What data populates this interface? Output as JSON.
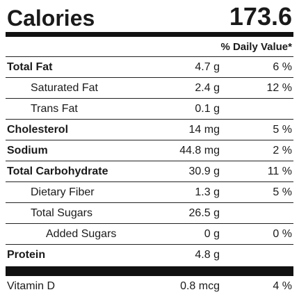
{
  "calories": {
    "label": "Calories",
    "value": "173.6"
  },
  "daily_value_header": "% Daily Value*",
  "nutrients": [
    {
      "name": "Total Fat",
      "amount": "4.7 g",
      "pct": "6 %"
    },
    {
      "name": "Saturated Fat",
      "amount": "2.4 g",
      "pct": "12 %"
    },
    {
      "name": "Trans Fat",
      "amount": "0.1 g",
      "pct": ""
    },
    {
      "name": "Cholesterol",
      "amount": "14 mg",
      "pct": "5 %"
    },
    {
      "name": "Sodium",
      "amount": "44.8 mg",
      "pct": "2 %"
    },
    {
      "name": "Total Carbohydrate",
      "amount": "30.9 g",
      "pct": "11 %"
    },
    {
      "name": "Dietary Fiber",
      "amount": "1.3 g",
      "pct": "5 %"
    },
    {
      "name": "Total Sugars",
      "amount": "26.5 g",
      "pct": ""
    },
    {
      "name": "Added Sugars",
      "amount": "0 g",
      "pct": "0 %"
    },
    {
      "name": "Protein",
      "amount": "4.8 g",
      "pct": ""
    }
  ],
  "vitamins": [
    {
      "name": "Vitamin D",
      "amount": "0.8 mcg",
      "pct": "4 %"
    }
  ]
}
